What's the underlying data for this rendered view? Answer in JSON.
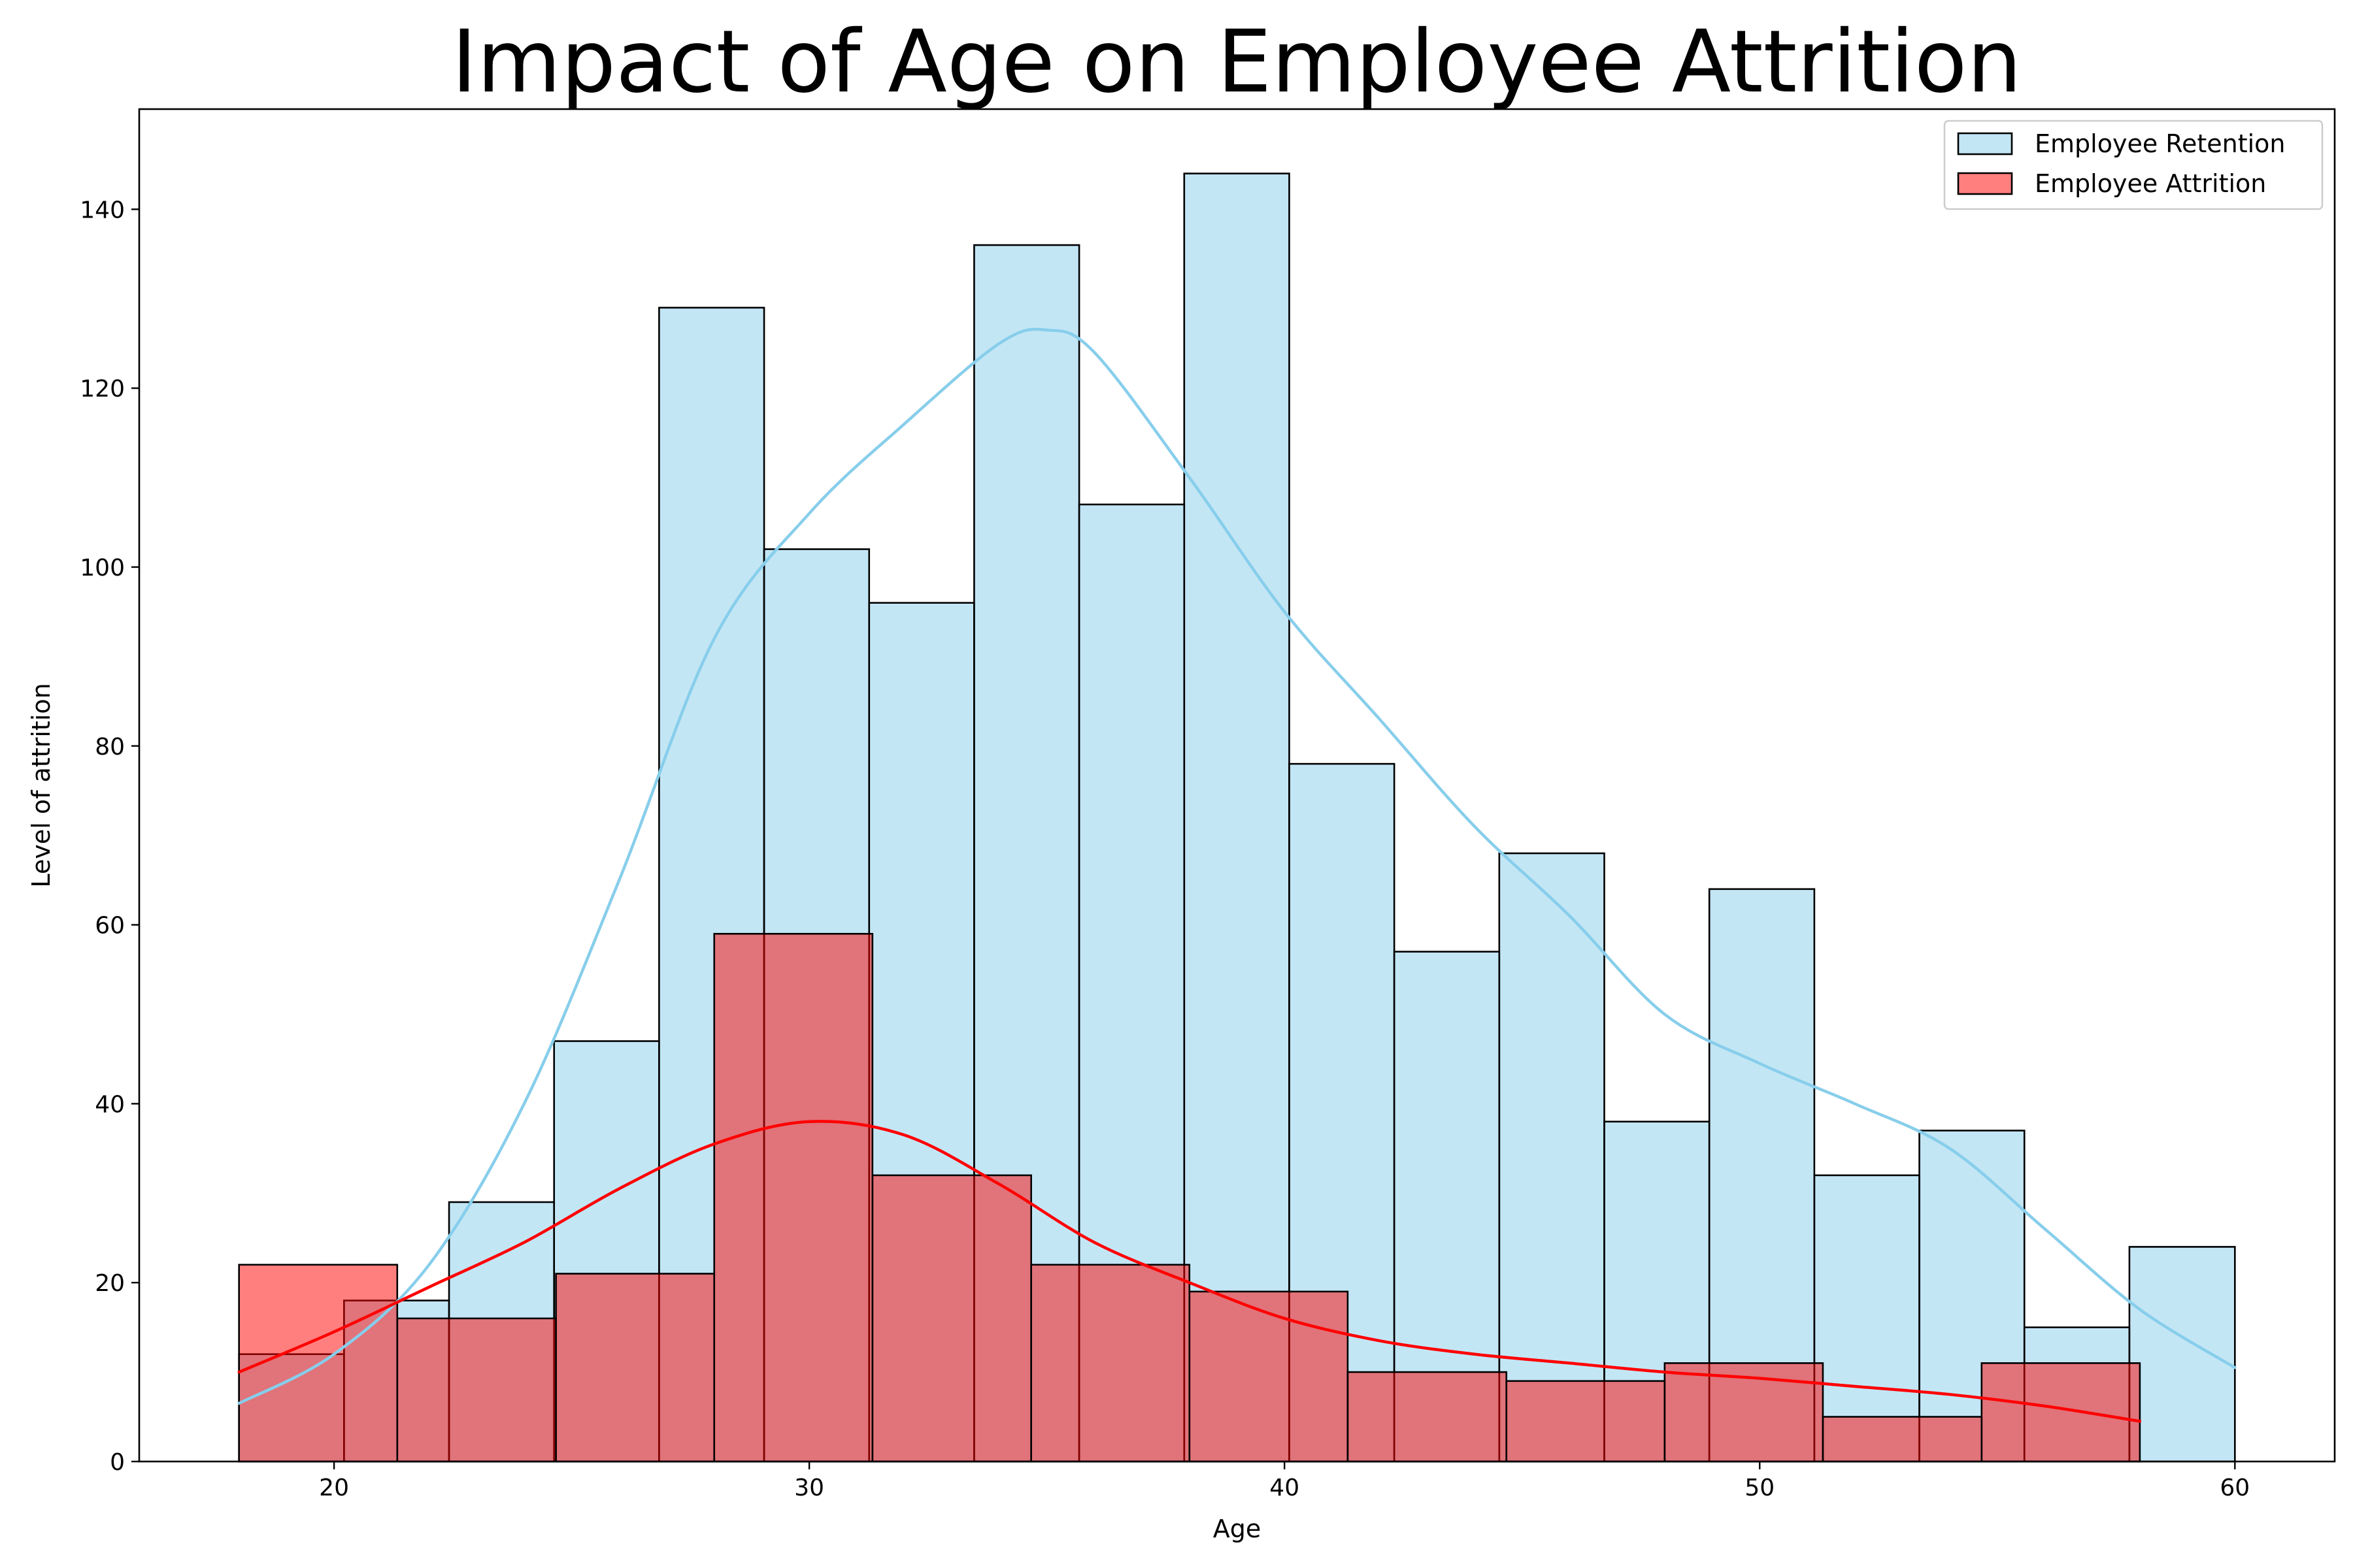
{
  "chart_data": {
    "type": "histogram",
    "title": "Impact of Age on Employee Attrition",
    "xlabel": "Age",
    "ylabel": "Level of attrition",
    "xlim": [
      15.9,
      62.1
    ],
    "ylim": [
      0,
      151.2
    ],
    "xticks": [
      20,
      30,
      40,
      50,
      60
    ],
    "yticks": [
      0,
      20,
      40,
      60,
      80,
      100,
      120,
      140
    ],
    "legend_position": "top-right",
    "series": [
      {
        "name": "Employee Retention",
        "color": "#87CEEB",
        "fill_opacity": 0.5,
        "bin_edges": [
          18.0,
          20.21,
          22.42,
          24.63,
          26.84,
          29.05,
          31.26,
          33.47,
          35.68,
          37.89,
          40.1,
          42.31,
          44.52,
          46.73,
          48.94,
          51.15,
          53.36,
          55.57,
          57.78,
          60.0
        ],
        "counts": [
          12,
          18,
          29,
          47,
          129,
          102,
          96,
          136,
          107,
          144,
          78,
          57,
          68,
          38,
          64,
          32,
          37,
          15,
          24
        ],
        "kde": [
          [
            18,
            6.5
          ],
          [
            20,
            12
          ],
          [
            22,
            22
          ],
          [
            24,
            40
          ],
          [
            26,
            65
          ],
          [
            28,
            92
          ],
          [
            30,
            106
          ],
          [
            32,
            116
          ],
          [
            34,
            125
          ],
          [
            35,
            126.5
          ],
          [
            36,
            124
          ],
          [
            38,
            110
          ],
          [
            40,
            95
          ],
          [
            42,
            83
          ],
          [
            44,
            71
          ],
          [
            46,
            61
          ],
          [
            48,
            50
          ],
          [
            50,
            44.5
          ],
          [
            52,
            40
          ],
          [
            54,
            35
          ],
          [
            56,
            26
          ],
          [
            58,
            17
          ],
          [
            60,
            10.5
          ]
        ]
      },
      {
        "name": "Employee Attrition",
        "color": "#FF0000",
        "fill_opacity": 0.5,
        "bin_edges": [
          18.0,
          21.33,
          24.67,
          28.0,
          31.33,
          34.67,
          38.0,
          41.33,
          44.67,
          48.0,
          51.33,
          54.67,
          58.0
        ],
        "counts": [
          22,
          16,
          21,
          59,
          32,
          22,
          19,
          10,
          9,
          11,
          5,
          11
        ],
        "kde": [
          [
            18,
            10
          ],
          [
            20,
            14.5
          ],
          [
            22,
            19.5
          ],
          [
            24,
            24.5
          ],
          [
            26,
            30.5
          ],
          [
            28,
            35.5
          ],
          [
            30,
            38
          ],
          [
            32,
            36.5
          ],
          [
            34,
            31
          ],
          [
            36,
            24.5
          ],
          [
            38,
            20
          ],
          [
            40,
            16
          ],
          [
            42,
            13.5
          ],
          [
            44,
            12
          ],
          [
            46,
            11
          ],
          [
            48,
            10
          ],
          [
            50,
            9.3
          ],
          [
            52,
            8.4
          ],
          [
            54,
            7.5
          ],
          [
            56,
            6.2
          ],
          [
            58,
            4.5
          ]
        ]
      }
    ]
  }
}
